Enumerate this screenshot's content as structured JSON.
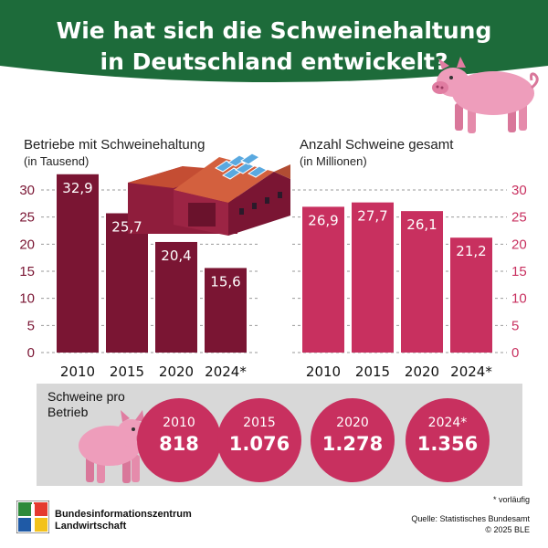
{
  "title": {
    "line1": "Wie hat sich die Schweinehaltung",
    "line2": "in Deutschland entwickelt?"
  },
  "colors": {
    "header_green": "#1d6b3a",
    "left_bars": "#7a1533",
    "right_bars": "#c8305f",
    "circles": "#c8305f",
    "gray_panel": "#d8d8d8"
  },
  "icons": [
    "pig-icon",
    "farm-building-icon",
    "ble-logo-icon"
  ],
  "chart_data": [
    {
      "type": "bar",
      "title": "Betriebe mit Schweinehaltung",
      "unit": "(in Tausend)",
      "categories": [
        "2010",
        "2015",
        "2020",
        "2024*"
      ],
      "values": [
        32.9,
        25.7,
        20.4,
        15.6
      ],
      "value_labels": [
        "32,9",
        "25,7",
        "20,4",
        "15,6"
      ],
      "ylim": [
        0,
        30
      ],
      "yticks": [
        "0",
        "5",
        "10",
        "15",
        "20",
        "25",
        "30"
      ],
      "grid": true,
      "axis_side": "left"
    },
    {
      "type": "bar",
      "title": "Anzahl Schweine gesamt",
      "unit": "(in Millionen)",
      "categories": [
        "2010",
        "2015",
        "2020",
        "2024*"
      ],
      "values": [
        26.9,
        27.7,
        26.1,
        21.2
      ],
      "value_labels": [
        "26,9",
        "27,7",
        "26,1",
        "21,2"
      ],
      "ylim": [
        0,
        30
      ],
      "yticks": [
        "0",
        "5",
        "10",
        "15",
        "20",
        "25",
        "30"
      ],
      "grid": true,
      "axis_side": "right"
    }
  ],
  "pigs_per_farm": {
    "label": "Schweine pro Betrieb",
    "items": [
      {
        "year": "2010",
        "value": "818"
      },
      {
        "year": "2015",
        "value": "1.076"
      },
      {
        "year": "2020",
        "value": "1.278"
      },
      {
        "year": "2024*",
        "value": "1.356"
      }
    ]
  },
  "footer": {
    "org_line1": "Bundesinformationszentrum",
    "org_line2": "Landwirtschaft",
    "note": "* vorläufig",
    "source": "Quelle: Statistisches Bundesamt",
    "copyright": "© 2025 BLE"
  }
}
